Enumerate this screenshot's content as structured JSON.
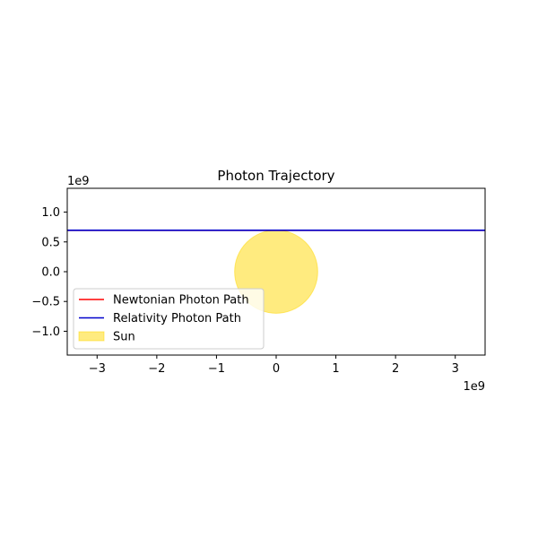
{
  "chart_data": {
    "type": "line",
    "title": "Photon Trajectory",
    "xlabel": "",
    "ylabel": "",
    "x_offset_label": "1e9",
    "y_offset_label": "1e9",
    "xlim": [
      -3.5,
      3.5
    ],
    "ylim": [
      -1.4,
      1.4
    ],
    "x_ticks": [
      -3,
      -2,
      -1,
      0,
      1,
      2,
      3
    ],
    "x_tick_labels": [
      "−3",
      "−2",
      "−1",
      "0",
      "1",
      "2",
      "3"
    ],
    "y_ticks": [
      1.0,
      0.5,
      0.0,
      -0.5,
      -1.0
    ],
    "y_tick_labels": [
      "1.0",
      "0.5",
      "0.0",
      "−0.5",
      "−1.0"
    ],
    "grid": false,
    "aspect": "equal",
    "series": [
      {
        "name": "Newtonian Photon Path",
        "color": "#ff0000",
        "x": [
          -3.5,
          3.5
        ],
        "y": [
          0.696,
          0.696
        ]
      },
      {
        "name": "Relativity Photon Path",
        "color": "#0000cc",
        "x": [
          -3.5,
          3.5
        ],
        "y": [
          0.696,
          0.696
        ]
      }
    ],
    "sun": {
      "name": "Sun",
      "color": "#ffd700",
      "center": [
        0,
        0
      ],
      "radius": 0.696
    },
    "legend": {
      "placement": "lower-left",
      "entries": [
        {
          "label": "Newtonian Photon Path",
          "kind": "line",
          "color": "#ff0000"
        },
        {
          "label": "Relativity Photon Path",
          "kind": "line",
          "color": "#0000cc"
        },
        {
          "label": "Sun",
          "kind": "patch",
          "color": "#ffd700"
        }
      ]
    }
  }
}
